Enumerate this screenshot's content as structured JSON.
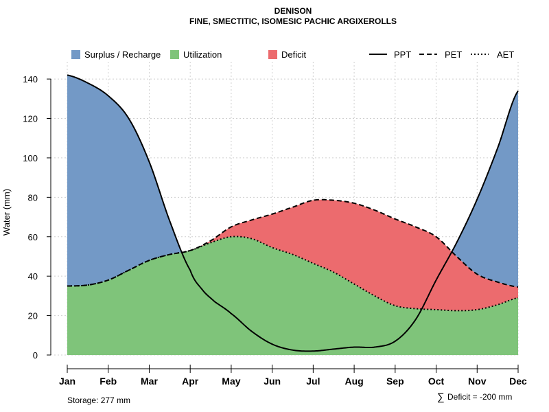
{
  "chart_data": {
    "type": "area",
    "title": "DENISON",
    "subtitle": "FINE, SMECTITIC, ISOMESIC PACHIC ARGIXEROLLS",
    "ylabel": "Water (mm)",
    "xlabel": "",
    "ylim": [
      0,
      147
    ],
    "yticks": [
      0,
      20,
      40,
      60,
      80,
      100,
      120,
      140
    ],
    "grid": true,
    "categories": [
      "Jan",
      "Feb",
      "Mar",
      "Apr",
      "May",
      "Jun",
      "Jul",
      "Aug",
      "Sep",
      "Oct",
      "Nov",
      "Dec"
    ],
    "series": [
      {
        "name": "PPT",
        "style": "solid",
        "points": [
          [
            0,
            142
          ],
          [
            0.5,
            138
          ],
          [
            1,
            131.5
          ],
          [
            1.5,
            120
          ],
          [
            2,
            98
          ],
          [
            2.5,
            68
          ],
          [
            3,
            43
          ],
          [
            3.3,
            33
          ],
          [
            3.6,
            27
          ],
          [
            4,
            21
          ],
          [
            4.5,
            12
          ],
          [
            5,
            5.5
          ],
          [
            5.5,
            2.5
          ],
          [
            6,
            2
          ],
          [
            6.5,
            3
          ],
          [
            7,
            4
          ],
          [
            7.5,
            4
          ],
          [
            8,
            7
          ],
          [
            8.5,
            18
          ],
          [
            9,
            38
          ],
          [
            9.5,
            57
          ],
          [
            10,
            79
          ],
          [
            10.5,
            105
          ],
          [
            11,
            134
          ]
        ]
      },
      {
        "name": "PET",
        "style": "dashed",
        "points": [
          [
            0,
            35
          ],
          [
            0.5,
            35.5
          ],
          [
            1,
            38
          ],
          [
            1.5,
            43
          ],
          [
            2,
            48
          ],
          [
            2.5,
            51
          ],
          [
            3,
            53
          ],
          [
            3.5,
            58
          ],
          [
            4,
            65
          ],
          [
            4.5,
            68.5
          ],
          [
            5,
            71.5
          ],
          [
            5.5,
            75
          ],
          [
            6,
            78.5
          ],
          [
            6.5,
            78.5
          ],
          [
            7,
            77
          ],
          [
            7.5,
            73.5
          ],
          [
            8,
            69
          ],
          [
            8.5,
            65
          ],
          [
            9,
            60
          ],
          [
            9.5,
            50
          ],
          [
            10,
            41
          ],
          [
            10.5,
            37
          ],
          [
            11,
            34.5
          ]
        ]
      },
      {
        "name": "AET",
        "style": "dotted",
        "points": [
          [
            0,
            35
          ],
          [
            0.5,
            35.5
          ],
          [
            1,
            38
          ],
          [
            1.5,
            43
          ],
          [
            2,
            48
          ],
          [
            2.5,
            51
          ],
          [
            3,
            53
          ],
          [
            3.5,
            57
          ],
          [
            4,
            60
          ],
          [
            4.5,
            59
          ],
          [
            5,
            54.5
          ],
          [
            5.5,
            51
          ],
          [
            6,
            46.5
          ],
          [
            6.5,
            42
          ],
          [
            7,
            36
          ],
          [
            7.5,
            30
          ],
          [
            8,
            25
          ],
          [
            8.5,
            23.5
          ],
          [
            9,
            23
          ],
          [
            9.5,
            22.5
          ],
          [
            10,
            23
          ],
          [
            10.5,
            25.5
          ],
          [
            11,
            29
          ]
        ]
      }
    ],
    "legend": {
      "placement": "top",
      "areas": [
        {
          "label": "Surplus / Recharge",
          "color": "#7399c6"
        },
        {
          "label": "Utilization",
          "color": "#7fc47a"
        },
        {
          "label": "Deficit",
          "color": "#ec6b6e"
        }
      ],
      "lines": [
        {
          "label": "PPT",
          "style": "solid"
        },
        {
          "label": "PET",
          "style": "dashed"
        },
        {
          "label": "AET",
          "style": "dotted"
        }
      ]
    },
    "colors": {
      "surplus": "#7399c6",
      "utilization": "#7fc47a",
      "deficit": "#ec6b6e",
      "line": "#000000",
      "grid": "#cfcfcf"
    },
    "annotations": {
      "storage": "Storage: 277 mm",
      "deficit_symbol": "∑",
      "deficit": "Deficit = -200 mm"
    }
  }
}
